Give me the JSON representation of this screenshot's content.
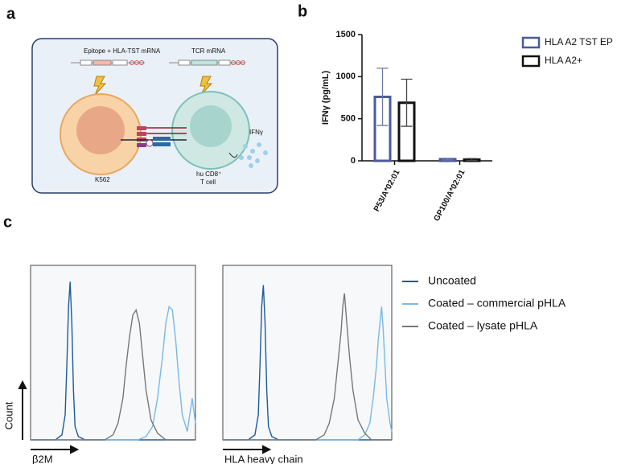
{
  "panels": [
    "a",
    "b",
    "c"
  ],
  "diagram": {
    "epitope_label": "Epitope + HLA-TST mRNA",
    "tcr_label": "TCR mRNA",
    "k562": "K562",
    "tcell_line1": "hu CD8⁺",
    "tcell_line2": "T cell",
    "ifn": "IFNγ"
  },
  "chart_data": [
    {
      "type": "bar",
      "ylabel": "IFNγ (pg/mL)",
      "categories": [
        "P53/A*02:01",
        "GP100/A*02:01"
      ],
      "series": [
        {
          "name": "HLA A2 TST EP",
          "color": "#4a5a9a",
          "values": [
            760,
            20
          ],
          "errors": [
            340,
            10
          ]
        },
        {
          "name": "HLA A2+",
          "color": "#111111",
          "values": [
            690,
            15
          ],
          "errors": [
            280,
            12
          ]
        }
      ],
      "ylim": [
        0,
        1500
      ],
      "yticks": [
        0,
        500,
        1000,
        1500
      ]
    },
    {
      "type": "line",
      "xlabel": "β2M",
      "ylabel": "Count",
      "xlim": [
        0,
        100
      ],
      "ylim": [
        0,
        100
      ],
      "series": [
        {
          "name": "Uncoated",
          "color": "#1f5a9a",
          "x": [
            0,
            15,
            19,
            21,
            22,
            23,
            24,
            25,
            26,
            27,
            29,
            33,
            100
          ],
          "values": [
            0,
            0,
            3,
            15,
            45,
            80,
            95,
            70,
            30,
            8,
            2,
            0,
            0
          ]
        },
        {
          "name": "Coated – commercial pHLA",
          "color": "#7ab8e8",
          "x": [
            0,
            65,
            70,
            74,
            77,
            80,
            82,
            84,
            86,
            88,
            90,
            92,
            95,
            98,
            100
          ],
          "values": [
            0,
            0,
            2,
            8,
            25,
            50,
            70,
            80,
            78,
            60,
            35,
            15,
            5,
            25,
            10
          ]
        },
        {
          "name": "Coated – lysate pHLA",
          "color": "#777777",
          "x": [
            0,
            45,
            50,
            53,
            56,
            58,
            60,
            62,
            64,
            66,
            68,
            70,
            73,
            77,
            82,
            100
          ],
          "values": [
            0,
            0,
            3,
            10,
            25,
            45,
            62,
            75,
            78,
            70,
            50,
            30,
            12,
            4,
            0,
            0
          ]
        }
      ]
    },
    {
      "type": "line",
      "xlabel": "HLA heavy chain",
      "xlim": [
        0,
        100
      ],
      "ylim": [
        0,
        100
      ],
      "series": [
        {
          "color": "#1f5a9a",
          "x": [
            0,
            15,
            19,
            21,
            22,
            23,
            24,
            25,
            26,
            27,
            29,
            33,
            100
          ],
          "values": [
            0,
            0,
            3,
            15,
            45,
            80,
            93,
            70,
            30,
            8,
            2,
            0,
            0
          ]
        },
        {
          "color": "#7ab8e8",
          "x": [
            0,
            80,
            84,
            87,
            89,
            91,
            92,
            93,
            94,
            95,
            96,
            97,
            99,
            100
          ],
          "values": [
            0,
            0,
            3,
            10,
            25,
            45,
            60,
            70,
            80,
            65,
            45,
            25,
            10,
            5
          ]
        },
        {
          "color": "#777777",
          "x": [
            0,
            55,
            60,
            63,
            66,
            68,
            70,
            71,
            72,
            73,
            75,
            77,
            80,
            84,
            88,
            100
          ],
          "values": [
            0,
            0,
            3,
            10,
            25,
            45,
            65,
            80,
            88,
            75,
            50,
            30,
            12,
            4,
            0,
            0
          ]
        }
      ]
    }
  ]
}
